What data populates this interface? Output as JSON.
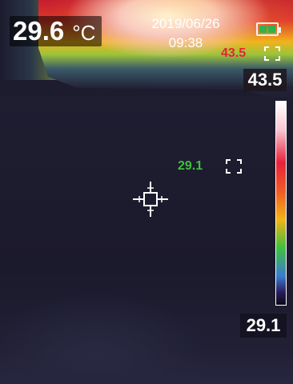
{
  "readout": {
    "center_temp": "29.6",
    "unit": "°C"
  },
  "datetime": {
    "date": "2019/06/26",
    "time": "09:38"
  },
  "battery": {
    "level": 1.0,
    "color": "#2fb34a",
    "icon": "battery-icon"
  },
  "hot_spot": {
    "value": "43.5",
    "color": "#e8213a",
    "icon": "hot-spot-marker-icon"
  },
  "cold_spot": {
    "value": "29.1",
    "color": "#3fbf3f",
    "icon": "cold-spot-marker-icon"
  },
  "scale": {
    "max": "43.5",
    "min": "29.1",
    "palette": [
      "#ffffff",
      "#f8c6d2",
      "#e8213a",
      "#ef5a27",
      "#f5b316",
      "#3fbf3f",
      "#3a7bd0",
      "#2a1a5a",
      "#0a0a16"
    ]
  },
  "crosshair": {
    "icon": "center-crosshair-icon"
  }
}
